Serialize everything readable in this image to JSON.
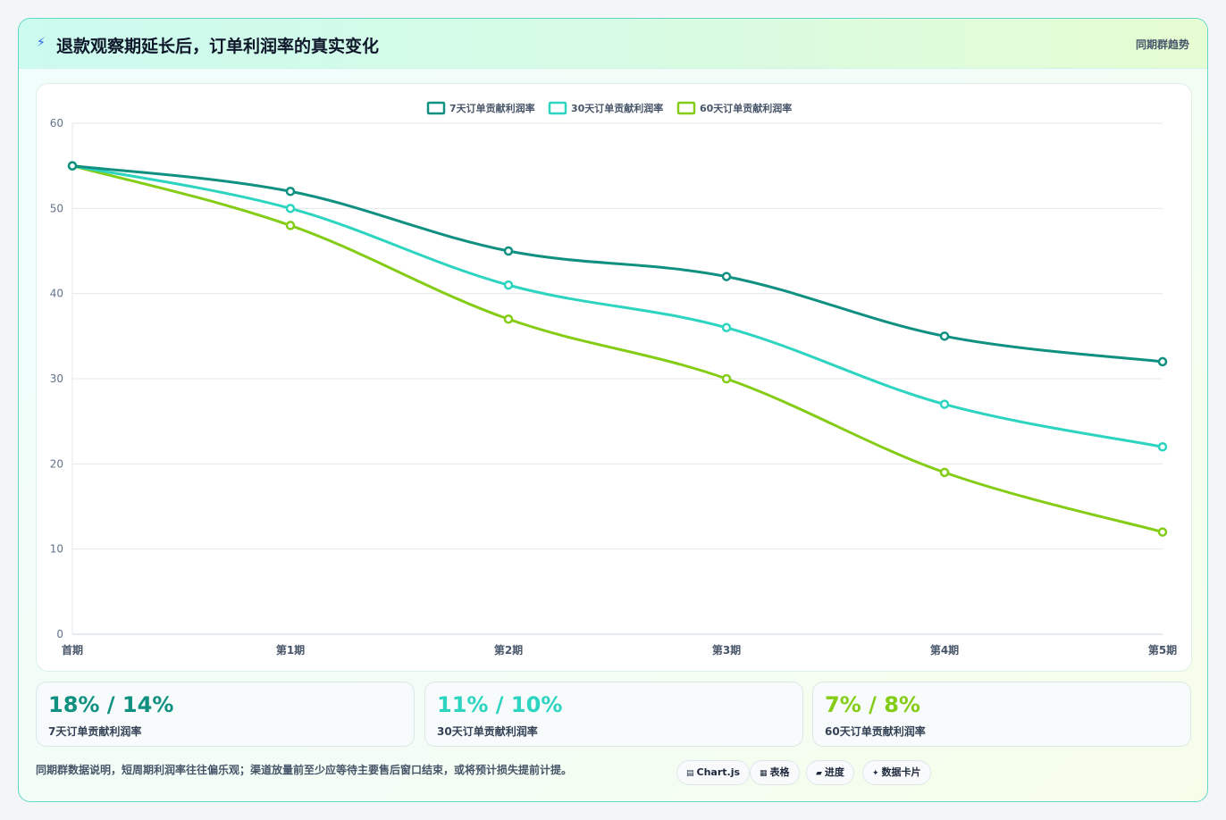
{
  "header": {
    "icon": "lightning-icon",
    "title": "退款观察期延长后，订单利润率的真实变化",
    "tag": "同期群趋势"
  },
  "chart_data": {
    "type": "line",
    "categories": [
      "首期",
      "第1期",
      "第2期",
      "第3期",
      "第4期",
      "第5期"
    ],
    "series": [
      {
        "name": "7天订单贡献利润率",
        "color": "#0f9080",
        "values": [
          55,
          52,
          45,
          42,
          35,
          32
        ]
      },
      {
        "name": "30天订单贡献利润率",
        "color": "#2dd4bf",
        "values": [
          55,
          50,
          41,
          36,
          27,
          22
        ]
      },
      {
        "name": "60天订单贡献利润率",
        "color": "#84cc16",
        "values": [
          55,
          48,
          37,
          30,
          19,
          12
        ]
      }
    ],
    "ylim": [
      0,
      60
    ],
    "yticks": [
      0,
      10,
      20,
      30,
      40,
      50,
      60
    ],
    "grid": true,
    "legend": "top-center"
  },
  "stats": [
    {
      "value": "18% / 14%",
      "label": "7天订单贡献利润率",
      "color": "#0f9080"
    },
    {
      "value": "11% / 10%",
      "label": "30天订单贡献利润率",
      "color": "#2dd4bf"
    },
    {
      "value": "7% / 8%",
      "label": "60天订单贡献利润率",
      "color": "#84cc16"
    }
  ],
  "footer": {
    "note": "同期群数据说明，短周期利润率往往偏乐观；渠道放量前至少应等待主要售后窗口结束，或将预计损失提前计提。",
    "pills": [
      {
        "icon": "chart-icon",
        "glyph": "▤",
        "label": "Chart.js"
      },
      {
        "icon": "table-icon",
        "glyph": "▦",
        "label": "表格"
      },
      {
        "icon": "progress-icon",
        "glyph": "▰",
        "label": "进度"
      },
      {
        "icon": "sparkle-icon",
        "glyph": "✦",
        "label": "数据卡片"
      }
    ]
  }
}
